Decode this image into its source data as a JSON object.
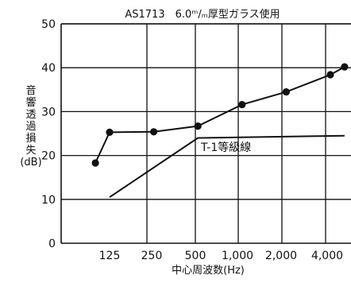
{
  "chart_data": {
    "type": "line",
    "title": "AS1713　6.0ᵐ/ₘ厚型ガラス使用",
    "xlabel": "中心周波数(Hz)",
    "ylabel": "音響透過損失(dB)",
    "ylabel_lines": [
      "音",
      "響",
      "透",
      "過",
      "損",
      "失",
      "(dB)"
    ],
    "categories": [
      "125",
      "250",
      "500",
      "1,000",
      "2,000",
      "4,000"
    ],
    "ylim": [
      0,
      50
    ],
    "yticks": [
      0,
      10,
      20,
      30,
      40,
      50
    ],
    "grid": true,
    "series": [
      {
        "role": "measured",
        "markers": true,
        "points": [
          {
            "x": 100,
            "y": 18.3
          },
          {
            "x": 125,
            "y": 25.3
          },
          {
            "x": 250,
            "y": 25.4
          },
          {
            "x": 500,
            "y": 26.7
          },
          {
            "x": 1000,
            "y": 31.6
          },
          {
            "x": 2000,
            "y": 34.5
          },
          {
            "x": 4000,
            "y": 38.4
          },
          {
            "x": 5000,
            "y": 40.2
          }
        ]
      },
      {
        "name": "T-1等級線",
        "role": "reference",
        "markers": false,
        "points": [
          {
            "x": 125,
            "y": 10.5
          },
          {
            "x": 500,
            "y": 24.0
          },
          {
            "x": 5000,
            "y": 24.5
          }
        ]
      }
    ],
    "annotations": [
      {
        "text": "T-1等級線",
        "series": "T-1等級線"
      }
    ],
    "colors": {
      "line": "#111111",
      "grid": "#111111",
      "background": "#ffffff"
    }
  }
}
